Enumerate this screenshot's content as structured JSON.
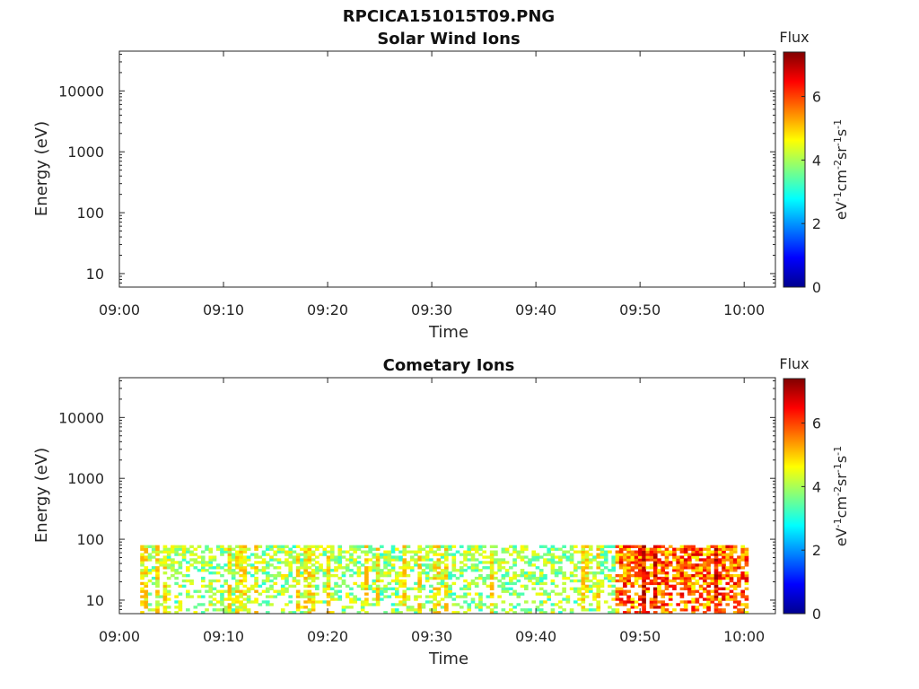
{
  "figure": {
    "title": "RPCICA151015T09.PNG"
  },
  "chart_data": [
    {
      "type": "heatmap",
      "title": "Solar Wind Ions",
      "xlabel": "Time",
      "ylabel": "Energy (eV)",
      "x_ticks": [
        "09:00",
        "09:10",
        "09:20",
        "09:30",
        "09:40",
        "09:50",
        "10:00"
      ],
      "x_range_minutes": [
        0,
        63
      ],
      "y_ticks": [
        "10",
        "100",
        "1000",
        "10000"
      ],
      "y_scale": "log",
      "y_range": [
        6,
        45000
      ],
      "colorbar": {
        "title": "Flux",
        "unit": "eV-1cm-2sr-1s-1",
        "ticks": [
          "0",
          "2",
          "4",
          "6"
        ],
        "range": [
          0,
          7.4
        ],
        "colormap": "jet"
      },
      "data_bands": []
    },
    {
      "type": "heatmap",
      "title": "Cometary Ions",
      "xlabel": "Time",
      "ylabel": "Energy (eV)",
      "x_ticks": [
        "09:00",
        "09:10",
        "09:20",
        "09:30",
        "09:40",
        "09:50",
        "10:00"
      ],
      "x_range_minutes": [
        0,
        63
      ],
      "y_ticks": [
        "10",
        "100",
        "1000",
        "10000"
      ],
      "y_scale": "log",
      "y_range": [
        6,
        45000
      ],
      "colorbar": {
        "title": "Flux",
        "unit": "eV-1cm-2sr-1s-1",
        "ticks": [
          "0",
          "2",
          "4",
          "6"
        ],
        "range": [
          0,
          7.4
        ],
        "colormap": "jet"
      },
      "data_extent": {
        "t_start_minutes": 2,
        "t_end_minutes": 60.4,
        "e_min": 6,
        "e_max": 80
      },
      "data_bands": [
        {
          "t": [
            2,
            47.5
          ],
          "e": [
            6,
            80
          ],
          "value_range": [
            3.0,
            4.8
          ],
          "fill": 0.55
        },
        {
          "t": [
            47.5,
            60.4
          ],
          "e": [
            6,
            80
          ],
          "value_range": [
            4.5,
            6.8
          ],
          "fill": 0.85
        }
      ]
    }
  ]
}
